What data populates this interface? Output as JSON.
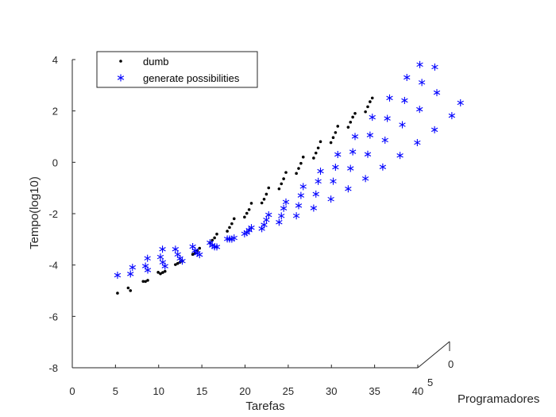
{
  "chart_data": {
    "type": "scatter",
    "xlabel": "Tarefas",
    "ylabel": "Tempo(log10)",
    "zlabel": "Programadores",
    "xlim": [
      0,
      40
    ],
    "ylim": [
      -8,
      4
    ],
    "x_ticks": [
      0,
      5,
      10,
      15,
      20,
      25,
      30,
      35,
      40
    ],
    "y_ticks": [
      4,
      2,
      0,
      -2,
      -4,
      -6,
      -8
    ],
    "z_ticks": [
      0,
      5
    ],
    "grid": false,
    "legend_position": "top-left",
    "series": [
      {
        "name": "dumb",
        "marker": "dot",
        "color": "#000000",
        "rows": [
          {
            "z": 1,
            "points": [
              [
                4.5,
                -5.3
              ],
              [
                6,
                -5.2
              ],
              [
                8,
                -4.8
              ],
              [
                10,
                -4.45
              ],
              [
                12,
                -4.05
              ],
              [
                14,
                -3.55
              ],
              [
                16,
                -3.0
              ],
              [
                18,
                -2.4
              ],
              [
                20,
                -1.8
              ],
              [
                22,
                -1.2
              ],
              [
                24,
                -0.6
              ],
              [
                26,
                0.0
              ],
              [
                28,
                0.6
              ],
              [
                30,
                1.2
              ],
              [
                32,
                1.7
              ],
              [
                34,
                2.3
              ]
            ]
          },
          {
            "z": 2,
            "points": [
              [
                5,
                -5.3
              ],
              [
                7,
                -5.05
              ],
              [
                9,
                -4.7
              ],
              [
                11,
                -4.3
              ],
              [
                13,
                -3.85
              ],
              [
                15,
                -3.35
              ],
              [
                17,
                -2.8
              ],
              [
                19,
                -2.25
              ],
              [
                21,
                -1.65
              ],
              [
                23,
                -1.05
              ],
              [
                25,
                -0.45
              ],
              [
                27,
                0.15
              ],
              [
                29,
                0.75
              ],
              [
                31,
                1.35
              ],
              [
                33,
                1.95
              ]
            ]
          },
          {
            "z": 3,
            "points": [
              [
                6,
                -5.25
              ],
              [
                8,
                -4.95
              ],
              [
                10,
                -4.55
              ],
              [
                12,
                -4.15
              ],
              [
                14,
                -3.65
              ],
              [
                16,
                -3.15
              ],
              [
                18,
                -2.6
              ],
              [
                20,
                -2.05
              ],
              [
                22,
                -1.45
              ],
              [
                24,
                -0.85
              ],
              [
                26,
                -0.25
              ],
              [
                28,
                0.35
              ],
              [
                30,
                0.95
              ],
              [
                32,
                1.55
              ]
            ]
          },
          {
            "z": 4,
            "points": [
              [
                7,
                -5.1
              ],
              [
                9,
                -4.8
              ],
              [
                11,
                -4.4
              ],
              [
                13,
                -3.95
              ],
              [
                15,
                -3.5
              ],
              [
                17,
                -2.95
              ],
              [
                19,
                -2.4
              ],
              [
                21,
                -1.85
              ],
              [
                23,
                -1.25
              ],
              [
                25,
                -0.65
              ],
              [
                27,
                -0.05
              ],
              [
                29,
                0.55
              ],
              [
                31,
                1.15
              ]
            ]
          }
        ]
      },
      {
        "name": "generate possibilities",
        "marker": "asterisk",
        "color": "#0000ff",
        "rows": [
          {
            "z": 1,
            "points": [
              [
                4.5,
                -4.6
              ],
              [
                6,
                -4.55
              ],
              [
                8,
                -4.4
              ],
              [
                10,
                -4.25
              ],
              [
                12,
                -4.05
              ],
              [
                14,
                -3.8
              ],
              [
                16,
                -3.5
              ],
              [
                18,
                -3.15
              ],
              [
                20,
                -2.75
              ],
              [
                22,
                -2.25
              ],
              [
                24,
                -1.75
              ],
              [
                26,
                -1.15
              ],
              [
                28,
                -0.55
              ],
              [
                30,
                0.1
              ],
              [
                32,
                0.8
              ],
              [
                34,
                1.55
              ],
              [
                36,
                2.3
              ],
              [
                38,
                3.1
              ],
              [
                39.5,
                3.6
              ]
            ]
          },
          {
            "z": 2,
            "points": [
              [
                5.5,
                -4.5
              ],
              [
                7,
                -4.45
              ],
              [
                9,
                -4.3
              ],
              [
                11,
                -4.15
              ],
              [
                13,
                -3.95
              ],
              [
                15,
                -3.7
              ],
              [
                17,
                -3.4
              ],
              [
                19,
                -3.05
              ],
              [
                21,
                -2.65
              ],
              [
                23,
                -2.2
              ],
              [
                25,
                -1.7
              ],
              [
                27,
                -1.15
              ],
              [
                29,
                -0.6
              ],
              [
                31,
                0.0
              ],
              [
                33,
                0.65
              ],
              [
                35,
                1.3
              ],
              [
                37,
                2.0
              ],
              [
                39,
                2.7
              ],
              [
                40.5,
                3.3
              ]
            ]
          },
          {
            "z": 3,
            "points": [
              [
                6.5,
                -4.35
              ],
              [
                8,
                -4.3
              ],
              [
                10,
                -4.2
              ],
              [
                12,
                -4.05
              ],
              [
                14,
                -3.85
              ],
              [
                16,
                -3.6
              ],
              [
                18,
                -3.35
              ],
              [
                20,
                -3.05
              ],
              [
                22,
                -2.7
              ],
              [
                24,
                -2.3
              ],
              [
                26,
                -1.85
              ],
              [
                28,
                -1.35
              ],
              [
                30,
                -0.85
              ],
              [
                32,
                -0.3
              ],
              [
                34,
                0.25
              ],
              [
                36,
                0.85
              ],
              [
                38,
                1.45
              ],
              [
                40,
                2.1
              ]
            ]
          },
          {
            "z": 4,
            "points": [
              [
                7.5,
                -4.2
              ],
              [
                9,
                -4.2
              ],
              [
                11,
                -4.1
              ],
              [
                13,
                -3.95
              ],
              [
                15,
                -3.8
              ],
              [
                17,
                -3.6
              ],
              [
                19,
                -3.4
              ],
              [
                21,
                -3.15
              ],
              [
                23,
                -2.9
              ],
              [
                25,
                -2.6
              ],
              [
                27,
                -2.25
              ],
              [
                29,
                -1.85
              ],
              [
                31,
                -1.45
              ],
              [
                33,
                -1.0
              ],
              [
                35,
                -0.55
              ],
              [
                37,
                -0.05
              ],
              [
                39,
                0.45
              ],
              [
                41,
                1.0
              ],
              [
                42,
                1.5
              ]
            ]
          }
        ]
      }
    ]
  }
}
